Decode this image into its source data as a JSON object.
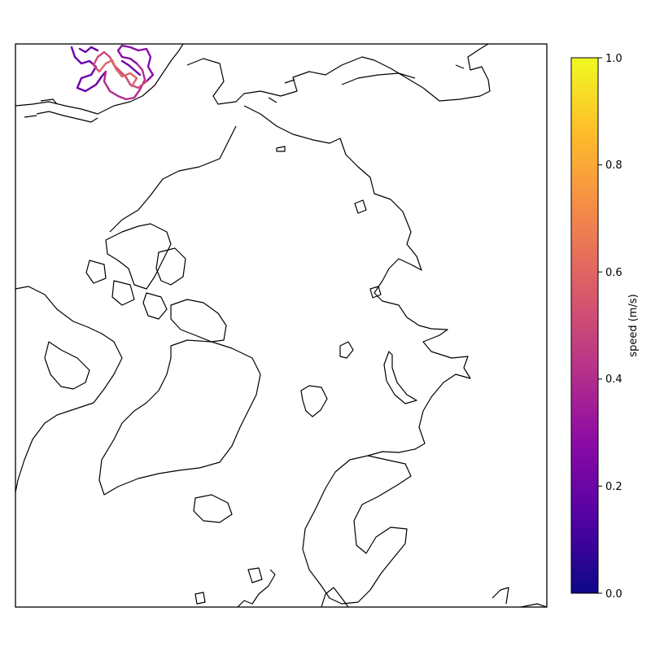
{
  "map": {
    "projection": "north-polar-stereographic",
    "features": [
      "coastlines"
    ],
    "track_variable": "speed",
    "colormap": "plasma"
  },
  "colorbar": {
    "label": "speed (m/s)",
    "min": 0.0,
    "max": 1.0,
    "ticks": [
      "0.0",
      "0.2",
      "0.4",
      "0.6",
      "0.8",
      "1.0"
    ],
    "colors": [
      "#0d0887",
      "#5302a3",
      "#8b0aa5",
      "#b83289",
      "#db5c68",
      "#f48849",
      "#febd2a",
      "#f0f921"
    ]
  },
  "track_color_samples": [
    "#6a00a8",
    "#8b0aa5",
    "#b12a90",
    "#cc4778",
    "#e16462"
  ]
}
